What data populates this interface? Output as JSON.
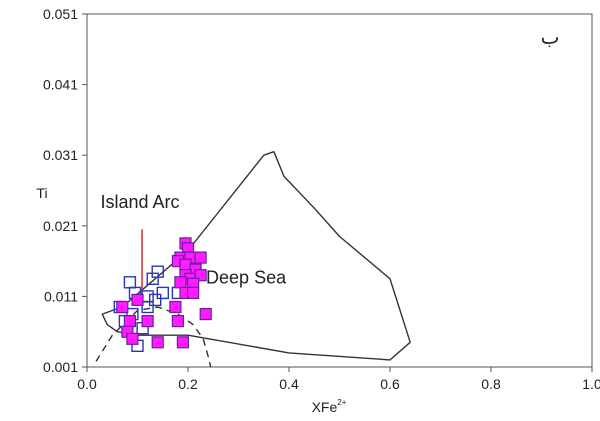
{
  "chart_data": {
    "type": "scatter",
    "title": "",
    "corner_label": "ب",
    "xlabel": "XFe",
    "xlabel_sup": "2+",
    "ylabel": "Ti",
    "xlim": [
      0.0,
      1.0
    ],
    "ylim": [
      0.001,
      0.051
    ],
    "x_ticks": [
      0.0,
      0.2,
      0.4,
      0.6,
      0.8,
      1.0
    ],
    "x_tick_labels": [
      "0.0",
      "0.2",
      "0.4",
      "0.6",
      "0.8",
      "1.0"
    ],
    "y_ticks": [
      0.001,
      0.011,
      0.021,
      0.031,
      0.041,
      0.051
    ],
    "y_tick_labels": [
      "0.001",
      "0.011",
      "0.021",
      "0.031",
      "0.041",
      "0.051"
    ],
    "grid": false,
    "annotations": [
      {
        "text": "Island Arc",
        "x": 0.105,
        "y": 0.0235
      },
      {
        "text": "Deep Sea",
        "x": 0.315,
        "y": 0.0128
      }
    ],
    "regions": [
      {
        "name": "Deep Sea",
        "style": "solid",
        "points": [
          [
            0.2,
            0.0175
          ],
          [
            0.35,
            0.031
          ],
          [
            0.37,
            0.0315
          ],
          [
            0.39,
            0.028
          ],
          [
            0.45,
            0.0235
          ],
          [
            0.5,
            0.0195
          ],
          [
            0.6,
            0.0135
          ],
          [
            0.62,
            0.009
          ],
          [
            0.64,
            0.0045
          ],
          [
            0.6,
            0.002
          ],
          [
            0.4,
            0.003
          ],
          [
            0.2,
            0.0055
          ],
          [
            0.1,
            0.0055
          ],
          [
            0.06,
            0.006
          ],
          [
            0.04,
            0.007
          ],
          [
            0.03,
            0.0085
          ],
          [
            0.05,
            0.009
          ],
          [
            0.07,
            0.0095
          ]
        ]
      },
      {
        "name": "Island Arc",
        "style": "dashed",
        "points": [
          [
            0.018,
            0.0018
          ],
          [
            0.05,
            0.0055
          ],
          [
            0.1,
            0.009
          ],
          [
            0.14,
            0.0095
          ],
          [
            0.18,
            0.0085
          ],
          [
            0.21,
            0.007
          ],
          [
            0.23,
            0.005
          ],
          [
            0.24,
            0.0025
          ],
          [
            0.245,
            0.001
          ]
        ]
      }
    ],
    "divider": {
      "x": 0.109,
      "y_from": 0.0105,
      "y_to": 0.0205,
      "color": "#cc2b2b"
    },
    "series": [
      {
        "marker": "open-square",
        "color": "#2b35b8",
        "points": [
          [
            0.085,
            0.013
          ],
          [
            0.13,
            0.0135
          ],
          [
            0.14,
            0.0145
          ],
          [
            0.095,
            0.0115
          ],
          [
            0.12,
            0.011
          ],
          [
            0.15,
            0.0115
          ],
          [
            0.075,
            0.0075
          ],
          [
            0.09,
            0.0085
          ],
          [
            0.11,
            0.0065
          ],
          [
            0.1,
            0.004
          ],
          [
            0.065,
            0.0095
          ],
          [
            0.12,
            0.0095
          ],
          [
            0.18,
            0.0115
          ],
          [
            0.135,
            0.0105
          ]
        ]
      },
      {
        "marker": "filled-square",
        "color": "#ff1aff",
        "edge": "#6a1fa0",
        "points": [
          [
            0.195,
            0.0185
          ],
          [
            0.2,
            0.0178
          ],
          [
            0.185,
            0.0165
          ],
          [
            0.205,
            0.0165
          ],
          [
            0.18,
            0.016
          ],
          [
            0.195,
            0.0155
          ],
          [
            0.225,
            0.0165
          ],
          [
            0.215,
            0.0148
          ],
          [
            0.195,
            0.014
          ],
          [
            0.205,
            0.0135
          ],
          [
            0.225,
            0.014
          ],
          [
            0.185,
            0.013
          ],
          [
            0.21,
            0.0128
          ],
          [
            0.195,
            0.0115
          ],
          [
            0.21,
            0.0115
          ],
          [
            0.175,
            0.0095
          ],
          [
            0.235,
            0.0085
          ],
          [
            0.18,
            0.0075
          ],
          [
            0.12,
            0.0075
          ],
          [
            0.1,
            0.0105
          ],
          [
            0.07,
            0.0095
          ],
          [
            0.085,
            0.0075
          ],
          [
            0.08,
            0.006
          ],
          [
            0.09,
            0.005
          ],
          [
            0.14,
            0.0045
          ],
          [
            0.19,
            0.0045
          ]
        ]
      }
    ]
  }
}
